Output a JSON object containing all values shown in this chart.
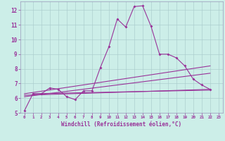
{
  "xlabel": "Windchill (Refroidissement éolien,°C)",
  "bg_color": "#cceee8",
  "grid_color": "#aacccc",
  "line_color": "#993399",
  "xlim": [
    -0.5,
    23.5
  ],
  "ylim": [
    5,
    12.6
  ],
  "xticks": [
    0,
    1,
    2,
    3,
    4,
    5,
    6,
    7,
    8,
    9,
    10,
    11,
    12,
    13,
    14,
    15,
    16,
    17,
    18,
    19,
    20,
    21,
    22,
    23
  ],
  "yticks": [
    5,
    6,
    7,
    8,
    9,
    10,
    11,
    12
  ],
  "main_line_x": [
    0,
    1,
    2,
    3,
    4,
    5,
    6,
    7,
    8,
    9,
    10,
    11,
    12,
    13,
    14,
    15,
    16,
    17,
    18,
    19,
    20,
    21,
    22
  ],
  "main_line_y": [
    5.15,
    6.3,
    6.3,
    6.7,
    6.6,
    6.1,
    5.9,
    6.5,
    6.5,
    8.1,
    9.5,
    11.4,
    10.85,
    12.25,
    12.3,
    10.9,
    9.0,
    9.0,
    8.75,
    8.2,
    7.3,
    6.9,
    6.6
  ],
  "trend_lines": [
    {
      "x": [
        0,
        22
      ],
      "y": [
        6.3,
        8.2
      ]
    },
    {
      "x": [
        0,
        22
      ],
      "y": [
        6.1,
        7.7
      ]
    },
    {
      "x": [
        0,
        22
      ],
      "y": [
        6.2,
        6.6
      ]
    },
    {
      "x": [
        1,
        22
      ],
      "y": [
        6.3,
        6.55
      ]
    }
  ]
}
